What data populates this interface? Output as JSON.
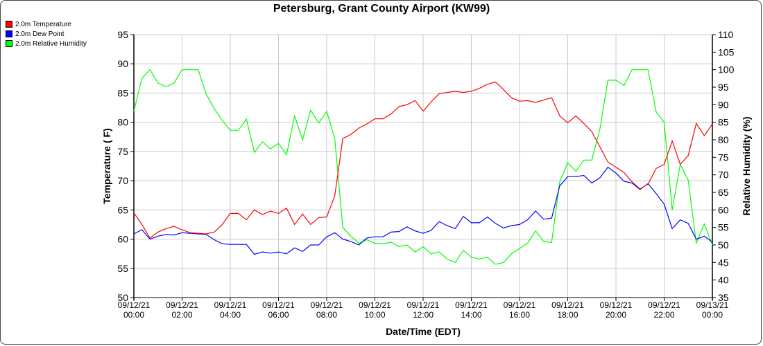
{
  "chart_data": {
    "type": "line",
    "title": "Petersburg, Grant County Airport (KW99)",
    "xlabel": "Date/Time (EDT)",
    "ylabel": "Temperature ( F)",
    "y2label": "Relative Humidity (%)",
    "ylim": [
      50,
      95
    ],
    "y2lim": [
      35,
      110
    ],
    "xlim_hours": [
      0,
      24
    ],
    "yticks": [
      50,
      55,
      60,
      65,
      70,
      75,
      80,
      85,
      90,
      95
    ],
    "y2ticks": [
      35,
      40,
      45,
      50,
      55,
      60,
      65,
      70,
      75,
      80,
      85,
      90,
      95,
      100,
      105,
      110
    ],
    "xticks": [
      {
        "hour": 0,
        "date": "09/12/21",
        "time": "00:00"
      },
      {
        "hour": 2,
        "date": "09/12/21",
        "time": "02:00"
      },
      {
        "hour": 4,
        "date": "09/12/21",
        "time": "04:00"
      },
      {
        "hour": 6,
        "date": "09/12/21",
        "time": "06:00"
      },
      {
        "hour": 8,
        "date": "09/12/21",
        "time": "08:00"
      },
      {
        "hour": 10,
        "date": "09/12/21",
        "time": "10:00"
      },
      {
        "hour": 12,
        "date": "09/12/21",
        "time": "12:00"
      },
      {
        "hour": 14,
        "date": "09/12/21",
        "time": "14:00"
      },
      {
        "hour": 16,
        "date": "09/12/21",
        "time": "16:00"
      },
      {
        "hour": 18,
        "date": "09/12/21",
        "time": "18:00"
      },
      {
        "hour": 20,
        "date": "09/12/21",
        "time": "20:00"
      },
      {
        "hour": 22,
        "date": "09/12/21",
        "time": "22:00"
      },
      {
        "hour": 24,
        "date": "09/13/21",
        "time": "00:00"
      }
    ],
    "grid": true,
    "legend_position": "top-left",
    "x_step_hours": 0.3333333,
    "series": [
      {
        "name": "2.0m Temperature",
        "axis": "left",
        "color": "#ff0000",
        "values": [
          64.5,
          62.5,
          60.2,
          61.2,
          61.8,
          62.2,
          61.6,
          61.1,
          61.0,
          60.9,
          61.2,
          62.5,
          64.4,
          64.4,
          63.3,
          65.0,
          64.2,
          64.8,
          64.4,
          65.3,
          62.5,
          64.3,
          62.5,
          63.7,
          63.8,
          67.4,
          77.2,
          77.9,
          79.0,
          79.7,
          80.6,
          80.6,
          81.4,
          82.7,
          83.0,
          83.7,
          81.9,
          83.5,
          84.9,
          85.1,
          85.3,
          85.1,
          85.3,
          85.8,
          86.5,
          86.9,
          85.6,
          84.2,
          83.6,
          83.7,
          83.4,
          83.8,
          84.2,
          81.1,
          79.9,
          81.1,
          79.8,
          78.4,
          75.8,
          73.2,
          72.3,
          71.4,
          69.8,
          68.6,
          69.4,
          72.1,
          72.8,
          76.8,
          72.8,
          74.3,
          79.8,
          77.7,
          79.7
        ]
      },
      {
        "name": "2.0m Dew Point",
        "axis": "left",
        "color": "#0000ff",
        "values": [
          60.9,
          61.6,
          60.0,
          60.5,
          60.8,
          60.7,
          61.1,
          61.0,
          60.9,
          60.8,
          59.9,
          59.2,
          59.1,
          59.1,
          59.1,
          57.4,
          57.8,
          57.6,
          57.8,
          57.5,
          58.5,
          57.9,
          59.0,
          59.0,
          60.4,
          61.1,
          60.0,
          59.6,
          59.0,
          60.2,
          60.4,
          60.4,
          61.2,
          61.3,
          62.1,
          61.4,
          61.0,
          61.5,
          63.0,
          62.3,
          61.8,
          63.9,
          62.8,
          62.8,
          63.8,
          62.7,
          61.9,
          62.3,
          62.5,
          63.3,
          64.8,
          63.4,
          63.6,
          69.1,
          70.7,
          70.7,
          70.9,
          69.6,
          70.5,
          72.3,
          71.3,
          69.9,
          69.6,
          68.5,
          69.5,
          67.8,
          66.0,
          61.8,
          63.3,
          62.7,
          60.0,
          60.5,
          59.5
        ]
      },
      {
        "name": "2.0m Relative Humidity",
        "axis": "right",
        "color": "#00ff00",
        "values": [
          88.2,
          97.5,
          100,
          96.2,
          95.1,
          96.2,
          100,
          100,
          100,
          93,
          88.9,
          85.5,
          82.7,
          82.7,
          85.9,
          76.4,
          79.4,
          77.4,
          79,
          75.7,
          86.8,
          80,
          88.4,
          84.8,
          88.1,
          80.3,
          55,
          52.5,
          50.5,
          51.5,
          50.5,
          50.3,
          50.8,
          49.5,
          50,
          48,
          49.5,
          47.5,
          48,
          46,
          45,
          48.5,
          46.5,
          46,
          46.5,
          44.5,
          45,
          47.5,
          49,
          50.5,
          54,
          51,
          50.7,
          68,
          73.5,
          71,
          74.2,
          74.2,
          83,
          97,
          97,
          95.5,
          100,
          100,
          100,
          88,
          85,
          60,
          73,
          68.5,
          50.5,
          56,
          50
        ]
      }
    ]
  }
}
